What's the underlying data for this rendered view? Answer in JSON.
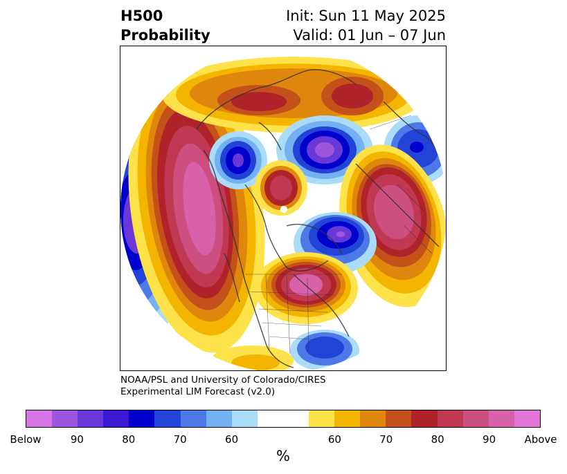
{
  "header": {
    "title_line1": "H500",
    "title_line2": "Probability",
    "init": "Init: Sun 11 May 2025",
    "valid": "Valid: 01 Jun – 07 Jun"
  },
  "credit": {
    "line1": "NOAA/PSL and University of Colorado/CIRES",
    "line2": "Experimental LIM Forecast (v2.0)"
  },
  "colorbar": {
    "colors": [
      "#d873e6",
      "#9b56dd",
      "#6a38d6",
      "#3a18d0",
      "#0000cc",
      "#2244d6",
      "#4d79e6",
      "#74b1f2",
      "#aadcf9",
      "#ffffff",
      "#ffffff",
      "#fde24a",
      "#f4b500",
      "#df860d",
      "#c4511a",
      "#b0232a",
      "#c13852",
      "#cc4f80",
      "#d762aa",
      "#e475d8"
    ],
    "tick_labels": [
      "Below",
      "90",
      "80",
      "70",
      "60",
      "60",
      "70",
      "80",
      "90",
      "Above"
    ],
    "units": "%"
  },
  "map": {
    "projection": "north-polar-stereographic",
    "variable": "500 hPa geopotential height probability"
  }
}
